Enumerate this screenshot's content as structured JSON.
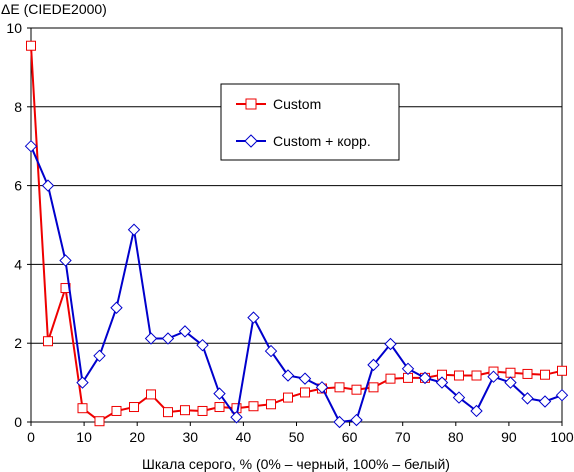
{
  "chart_data": {
    "type": "line",
    "ylabel": "ΔE (CIEDE2000)",
    "xlabel": "Шкала серого, % (0% – черный, 100% – белый)",
    "xlim": [
      0,
      100
    ],
    "ylim": [
      0,
      10
    ],
    "x_ticks": [
      0,
      10,
      20,
      30,
      40,
      50,
      60,
      70,
      80,
      90,
      100
    ],
    "y_ticks": [
      0,
      2,
      4,
      6,
      8,
      10
    ],
    "grid": "horizontal",
    "legend_position": "upper-center",
    "x": [
      0,
      3.2,
      6.5,
      9.7,
      12.9,
      16.1,
      19.4,
      22.6,
      25.8,
      29.0,
      32.3,
      35.5,
      38.7,
      41.9,
      45.2,
      48.4,
      51.6,
      54.8,
      58.1,
      61.3,
      64.5,
      67.7,
      71.0,
      74.2,
      77.4,
      80.6,
      83.9,
      87.1,
      90.3,
      93.5,
      96.8,
      100
    ],
    "series": [
      {
        "name": "Custom",
        "color": "#ee0000",
        "marker": "square",
        "values": [
          9.55,
          2.05,
          3.4,
          0.35,
          0.02,
          0.28,
          0.38,
          0.7,
          0.25,
          0.3,
          0.28,
          0.38,
          0.35,
          0.4,
          0.45,
          0.62,
          0.75,
          0.85,
          0.88,
          0.82,
          0.88,
          1.1,
          1.12,
          1.12,
          1.2,
          1.18,
          1.18,
          1.28,
          1.25,
          1.22,
          1.2,
          1.3
        ]
      },
      {
        "name": "Custom + корр.",
        "color": "#0000cc",
        "marker": "diamond",
        "values": [
          7.0,
          6.0,
          4.1,
          1.0,
          1.68,
          2.9,
          4.88,
          2.12,
          2.12,
          2.3,
          1.95,
          0.72,
          0.12,
          2.65,
          1.8,
          1.18,
          1.1,
          0.88,
          0.0,
          0.05,
          1.45,
          1.98,
          1.35,
          1.12,
          1.0,
          0.62,
          0.28,
          1.15,
          1.0,
          0.6,
          0.52,
          0.68
        ]
      }
    ]
  }
}
